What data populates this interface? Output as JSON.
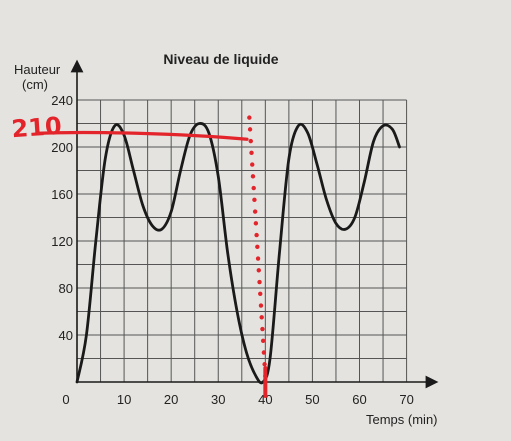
{
  "chart_data": {
    "type": "line",
    "title": "Niveau de liquide",
    "ylabel_line1": "Hauteur",
    "ylabel_line2": "(cm)",
    "xlabel": "Temps (min)",
    "xlim": [
      0,
      72
    ],
    "ylim": [
      0,
      240
    ],
    "grid": true,
    "xticks": [
      0,
      10,
      20,
      30,
      40,
      50,
      60,
      70
    ],
    "yticks": [
      0,
      40,
      80,
      120,
      160,
      200,
      240
    ],
    "series": [
      {
        "x": [
          0,
          2,
          4,
          6,
          8,
          10,
          12,
          14,
          16,
          18,
          20,
          22,
          24,
          26,
          28,
          30,
          32,
          34,
          36,
          38,
          39.5,
          41,
          43,
          45,
          47,
          49,
          51,
          53,
          55,
          57,
          59,
          61,
          63,
          65,
          67,
          68.5
        ],
        "y": [
          0,
          40,
          120,
          190,
          218,
          210,
          180,
          150,
          133,
          130,
          145,
          180,
          210,
          220,
          212,
          175,
          110,
          60,
          25,
          5,
          0,
          20,
          110,
          190,
          218,
          212,
          185,
          155,
          135,
          130,
          140,
          170,
          205,
          218,
          215,
          200
        ],
        "color": "#1a1a1a"
      }
    ],
    "annotations": {
      "value_label": "210",
      "value_y": 210,
      "mark_x": 40,
      "color": "#e3242b"
    }
  }
}
